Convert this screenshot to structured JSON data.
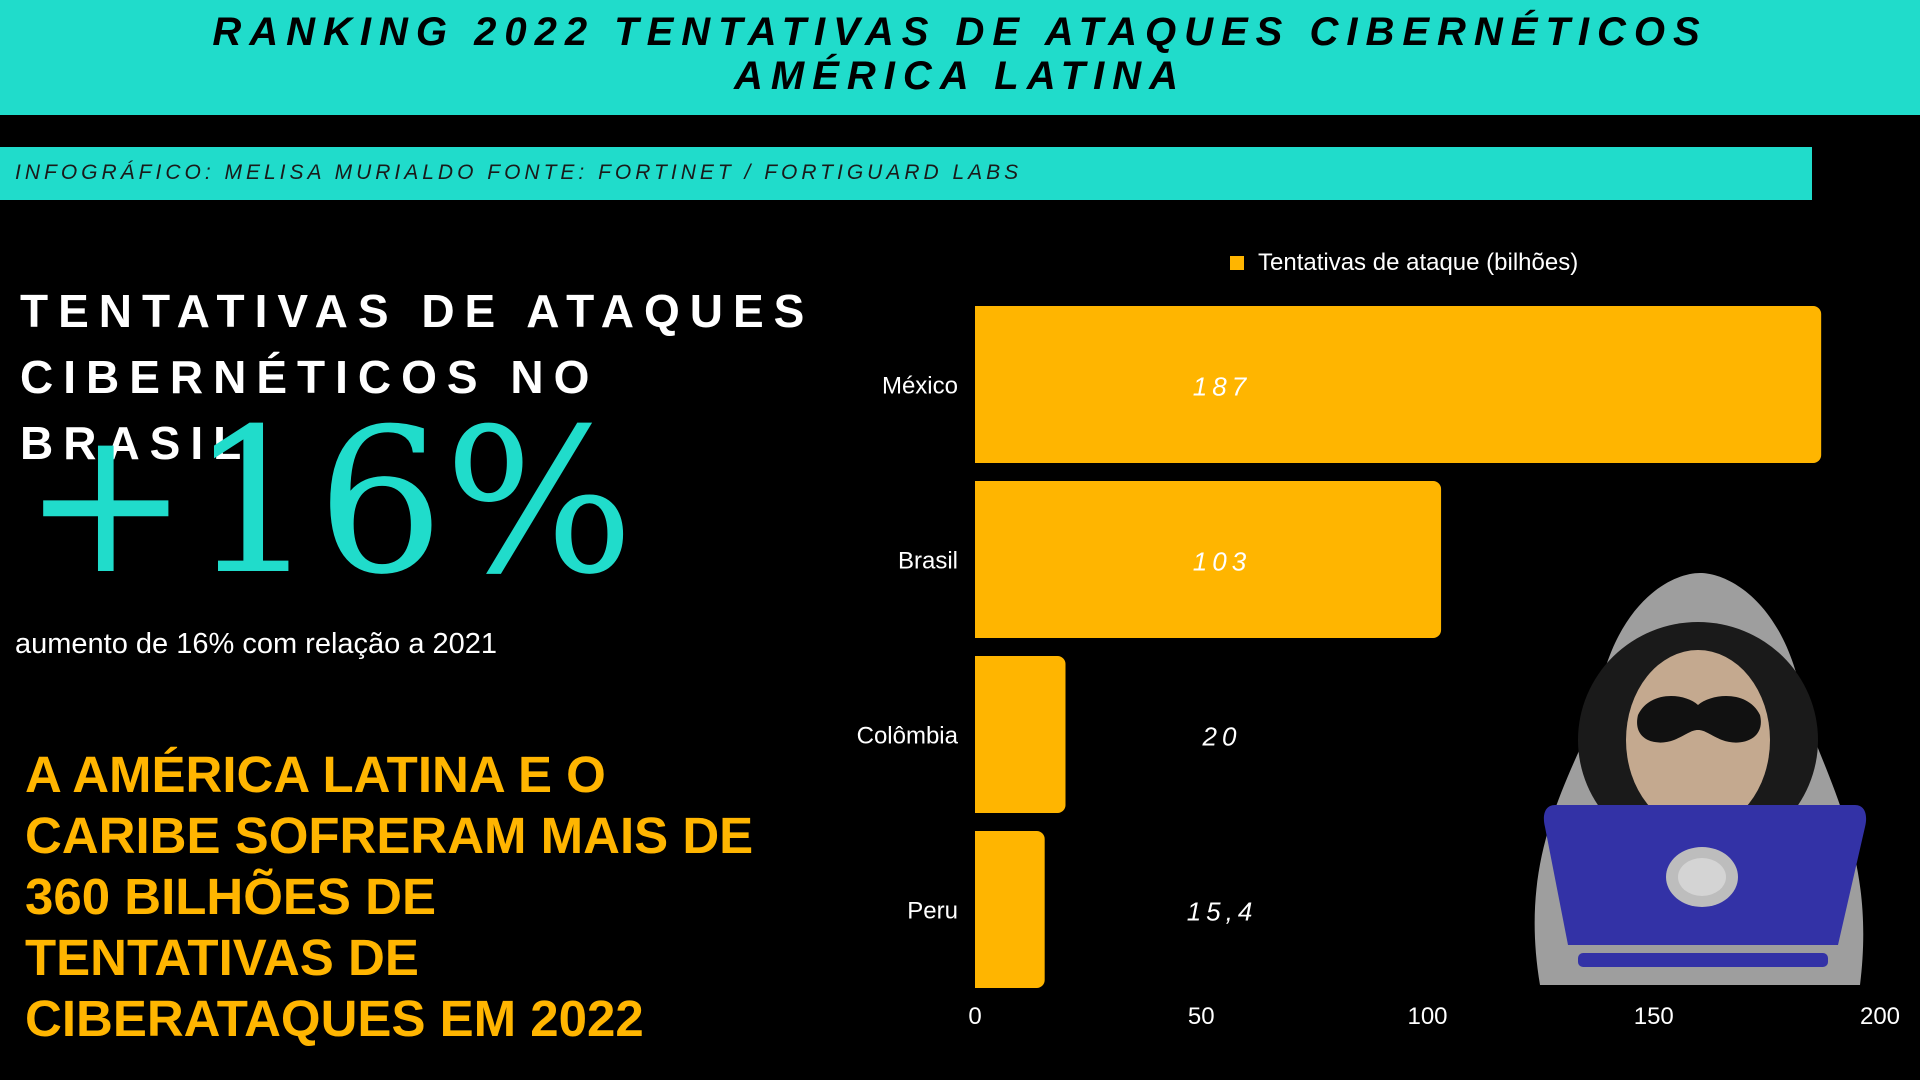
{
  "header": {
    "title_line1": "RANKING 2022 TENTATIVAS DE ATAQUES CIBERNÉTICOS",
    "title_line2": "AMÉRICA LATINA"
  },
  "credit": "INFOGRÁFICO: MELISA MURIALDO FONTE:  FORTINET / FORTIGUARD LABS",
  "brazil": {
    "heading_line1": "TENTATIVAS DE ATAQUES",
    "heading_line2": "CIBERNÉTICOS NO BRASIL",
    "percent": "+16%",
    "caption": "aumento de 16% com relação a 2021"
  },
  "highlight": {
    "line1": "A AMÉRICA LATINA E O",
    "line2": "CARIBE SOFRERAM MAIS DE",
    "line3": "360 BILHÕES DE",
    "line4": "TENTATIVAS DE",
    "line5": "CIBERATAQUES EM 2022"
  },
  "colors": {
    "accent_teal": "#20dccb",
    "bar_yellow": "#ffb500",
    "background": "#000000",
    "hood_gray": "#9e9e9e",
    "laptop_blue": "#3332a6"
  },
  "icons": [
    "hacker-laptop-illustration"
  ],
  "chart_data": {
    "type": "bar",
    "orientation": "horizontal",
    "categories": [
      "México",
      "Brasil",
      "Colômbia",
      "Peru"
    ],
    "series": [
      {
        "name": "Tentativas de ataque (bilhões)",
        "values": [
          187,
          103,
          20,
          15.4
        ]
      }
    ],
    "data_labels": [
      "187",
      "103",
      "20",
      "15,4"
    ],
    "x_ticks": [
      "0",
      "50",
      "100",
      "150",
      "200"
    ],
    "xlim": [
      0,
      200
    ],
    "legend_position": "top",
    "grid": false
  }
}
